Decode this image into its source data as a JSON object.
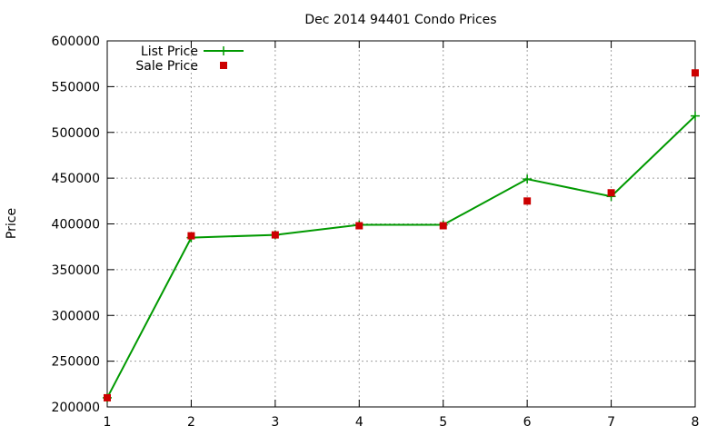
{
  "chart_data": {
    "type": "line",
    "title": "Dec 2014 94401 Condo Prices",
    "xlabel": "",
    "ylabel": "Price",
    "x": [
      1,
      2,
      3,
      4,
      5,
      6,
      7,
      8
    ],
    "xlim": [
      1,
      8
    ],
    "ylim": [
      200000,
      600000
    ],
    "xticks": [
      "1",
      "2",
      "3",
      "4",
      "5",
      "6",
      "7",
      "8"
    ],
    "yticks": [
      "200000",
      "250000",
      "300000",
      "350000",
      "400000",
      "450000",
      "500000",
      "550000",
      "600000"
    ],
    "grid": true,
    "legend_position": "top-left",
    "series": [
      {
        "name": "List Price",
        "style": "line+cross",
        "color": "#009900",
        "values": [
          210000,
          385000,
          388000,
          399000,
          399000,
          449000,
          430000,
          518000
        ]
      },
      {
        "name": "Sale Price",
        "style": "square-points",
        "color": "#cc0000",
        "values": [
          210000,
          387000,
          388000,
          398000,
          398000,
          425000,
          434000,
          565000
        ]
      }
    ]
  }
}
